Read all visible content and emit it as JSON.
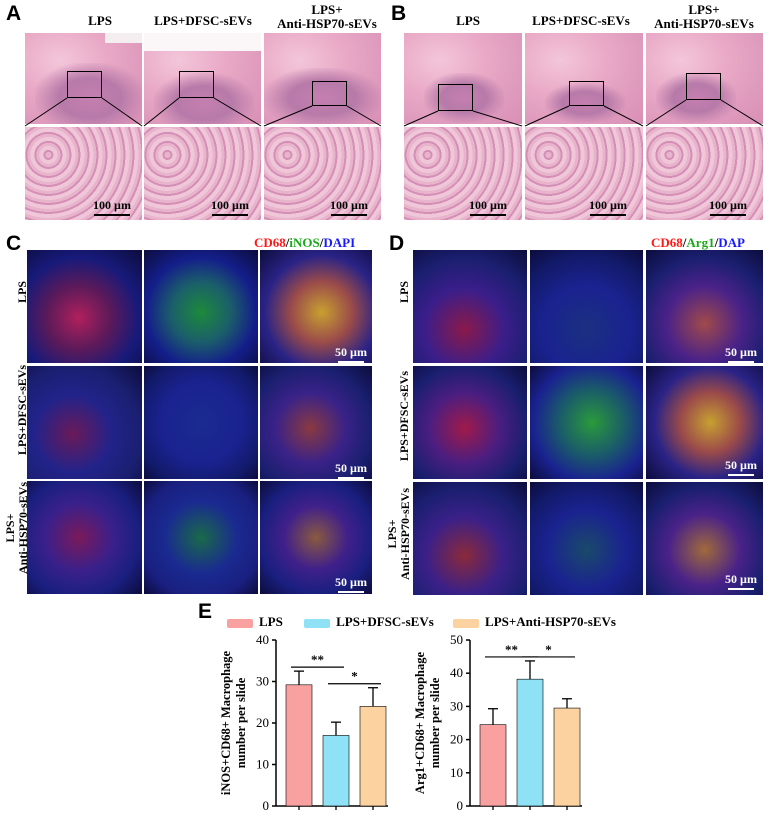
{
  "panels": {
    "A": "A",
    "B": "B",
    "C": "C",
    "D": "D",
    "E": "E"
  },
  "he_headers": {
    "lps": "LPS",
    "dfsc": "LPS+DFSC-sEVs",
    "anti_line1": "LPS+",
    "anti_line2": "Anti-HSP70-sEVs"
  },
  "scales": {
    "he": "100 µm",
    "if": "50 µm"
  },
  "panel_c": {
    "channels": [
      {
        "text": "CD68",
        "color": "#ff1a1a"
      },
      {
        "text": "/",
        "color": "#000000"
      },
      {
        "text": "iNOS",
        "color": "#1aa81a"
      },
      {
        "text": "/",
        "color": "#000000"
      },
      {
        "text": "DAPI",
        "color": "#1a1aff"
      }
    ],
    "rows": [
      "LPS",
      "LPS+DFSC-sEVs",
      "LPS+",
      "Anti-HSP70-sEVs"
    ]
  },
  "panel_d": {
    "channels": [
      {
        "text": "CD68",
        "color": "#ff1a1a"
      },
      {
        "text": "/",
        "color": "#000000"
      },
      {
        "text": "Arg1",
        "color": "#1aa81a"
      },
      {
        "text": "/",
        "color": "#000000"
      },
      {
        "text": "DAP",
        "color": "#1a1aff"
      }
    ],
    "rows": [
      "LPS",
      "LPS+DFSC-sEVs",
      "LPS+",
      "Anti-HSP70-sEVs"
    ]
  },
  "legend": [
    {
      "name": "LPS",
      "color": "#f9a1a1"
    },
    {
      "name": "LPS+DFSC-sEVs",
      "color": "#8fe1f5"
    },
    {
      "name": "LPS+Anti-HSP70-sEVs",
      "color": "#fcd3a0"
    }
  ],
  "chart_data": [
    {
      "type": "bar",
      "ylabel_line1": "iNOS+CD68+ Macrophage",
      "ylabel_line2": "number per slide",
      "ylim": [
        0,
        40
      ],
      "yticks": [
        "0",
        "10",
        "20",
        "30",
        "40"
      ],
      "categories": [
        "LPS",
        "LPS+DFSC-sEVs",
        "LPS+Anti-HSP70-sEVs"
      ],
      "values": [
        29.2,
        17.0,
        24.0
      ],
      "errors": [
        3.3,
        3.2,
        4.5
      ],
      "colors": [
        "#f9a1a1",
        "#8fe1f5",
        "#fcd3a0"
      ],
      "significance": [
        {
          "from": 0,
          "to": 1,
          "label": "**"
        },
        {
          "from": 1,
          "to": 2,
          "label": "*"
        }
      ]
    },
    {
      "type": "bar",
      "ylabel_line1": "Arg1+CD68+ Macrophage",
      "ylabel_line2": "number per slide",
      "ylim": [
        0,
        50
      ],
      "yticks": [
        "0",
        "10",
        "20",
        "30",
        "40",
        "50"
      ],
      "categories": [
        "LPS",
        "LPS+DFSC-sEVs",
        "LPS+Anti-HSP70-sEVs"
      ],
      "values": [
        24.5,
        38.2,
        29.5
      ],
      "errors": [
        4.8,
        5.5,
        2.8
      ],
      "colors": [
        "#f9a1a1",
        "#8fe1f5",
        "#fcd3a0"
      ],
      "significance": [
        {
          "from": 0,
          "to": 1,
          "label": "**"
        },
        {
          "from": 1,
          "to": 2,
          "label": "*"
        }
      ]
    }
  ]
}
